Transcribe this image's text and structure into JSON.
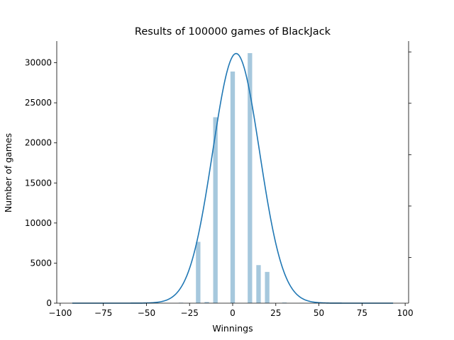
{
  "chart_data": {
    "type": "bar",
    "title": "Results of 100000 games of BlackJack",
    "xlabel": "Winnings",
    "ylabel": "Number of games",
    "xlim": [
      -102,
      102
    ],
    "ylim": [
      0,
      32700
    ],
    "xticks": [
      -100,
      -75,
      -50,
      -25,
      0,
      25,
      50,
      75,
      100
    ],
    "xtick_labels": [
      "−100",
      "−75",
      "−50",
      "−25",
      "0",
      "25",
      "50",
      "75",
      "100"
    ],
    "yticks": [
      0,
      5000,
      10000,
      15000,
      20000,
      25000,
      30000
    ],
    "ytick_labels": [
      "0",
      "5000",
      "10000",
      "15000",
      "20000",
      "25000",
      "30000"
    ],
    "bar_width": 2.6,
    "bar_color": "#a6c8dd",
    "series": [
      {
        "type": "bar",
        "x": [
          -40,
          -30,
          -20,
          -15,
          -10,
          0,
          10,
          15,
          20,
          30,
          40
        ],
        "values": [
          25,
          60,
          7650,
          150,
          23200,
          28900,
          31200,
          4750,
          3900,
          80,
          20
        ]
      },
      {
        "type": "line",
        "x": [
          -93,
          93
        ],
        "peak_x": 2,
        "peak_y": 31150,
        "sigma": 13.6,
        "color": "#1f77b4"
      }
    ],
    "secondary_axis_ticks": 5,
    "grid": false,
    "legend": "none"
  }
}
